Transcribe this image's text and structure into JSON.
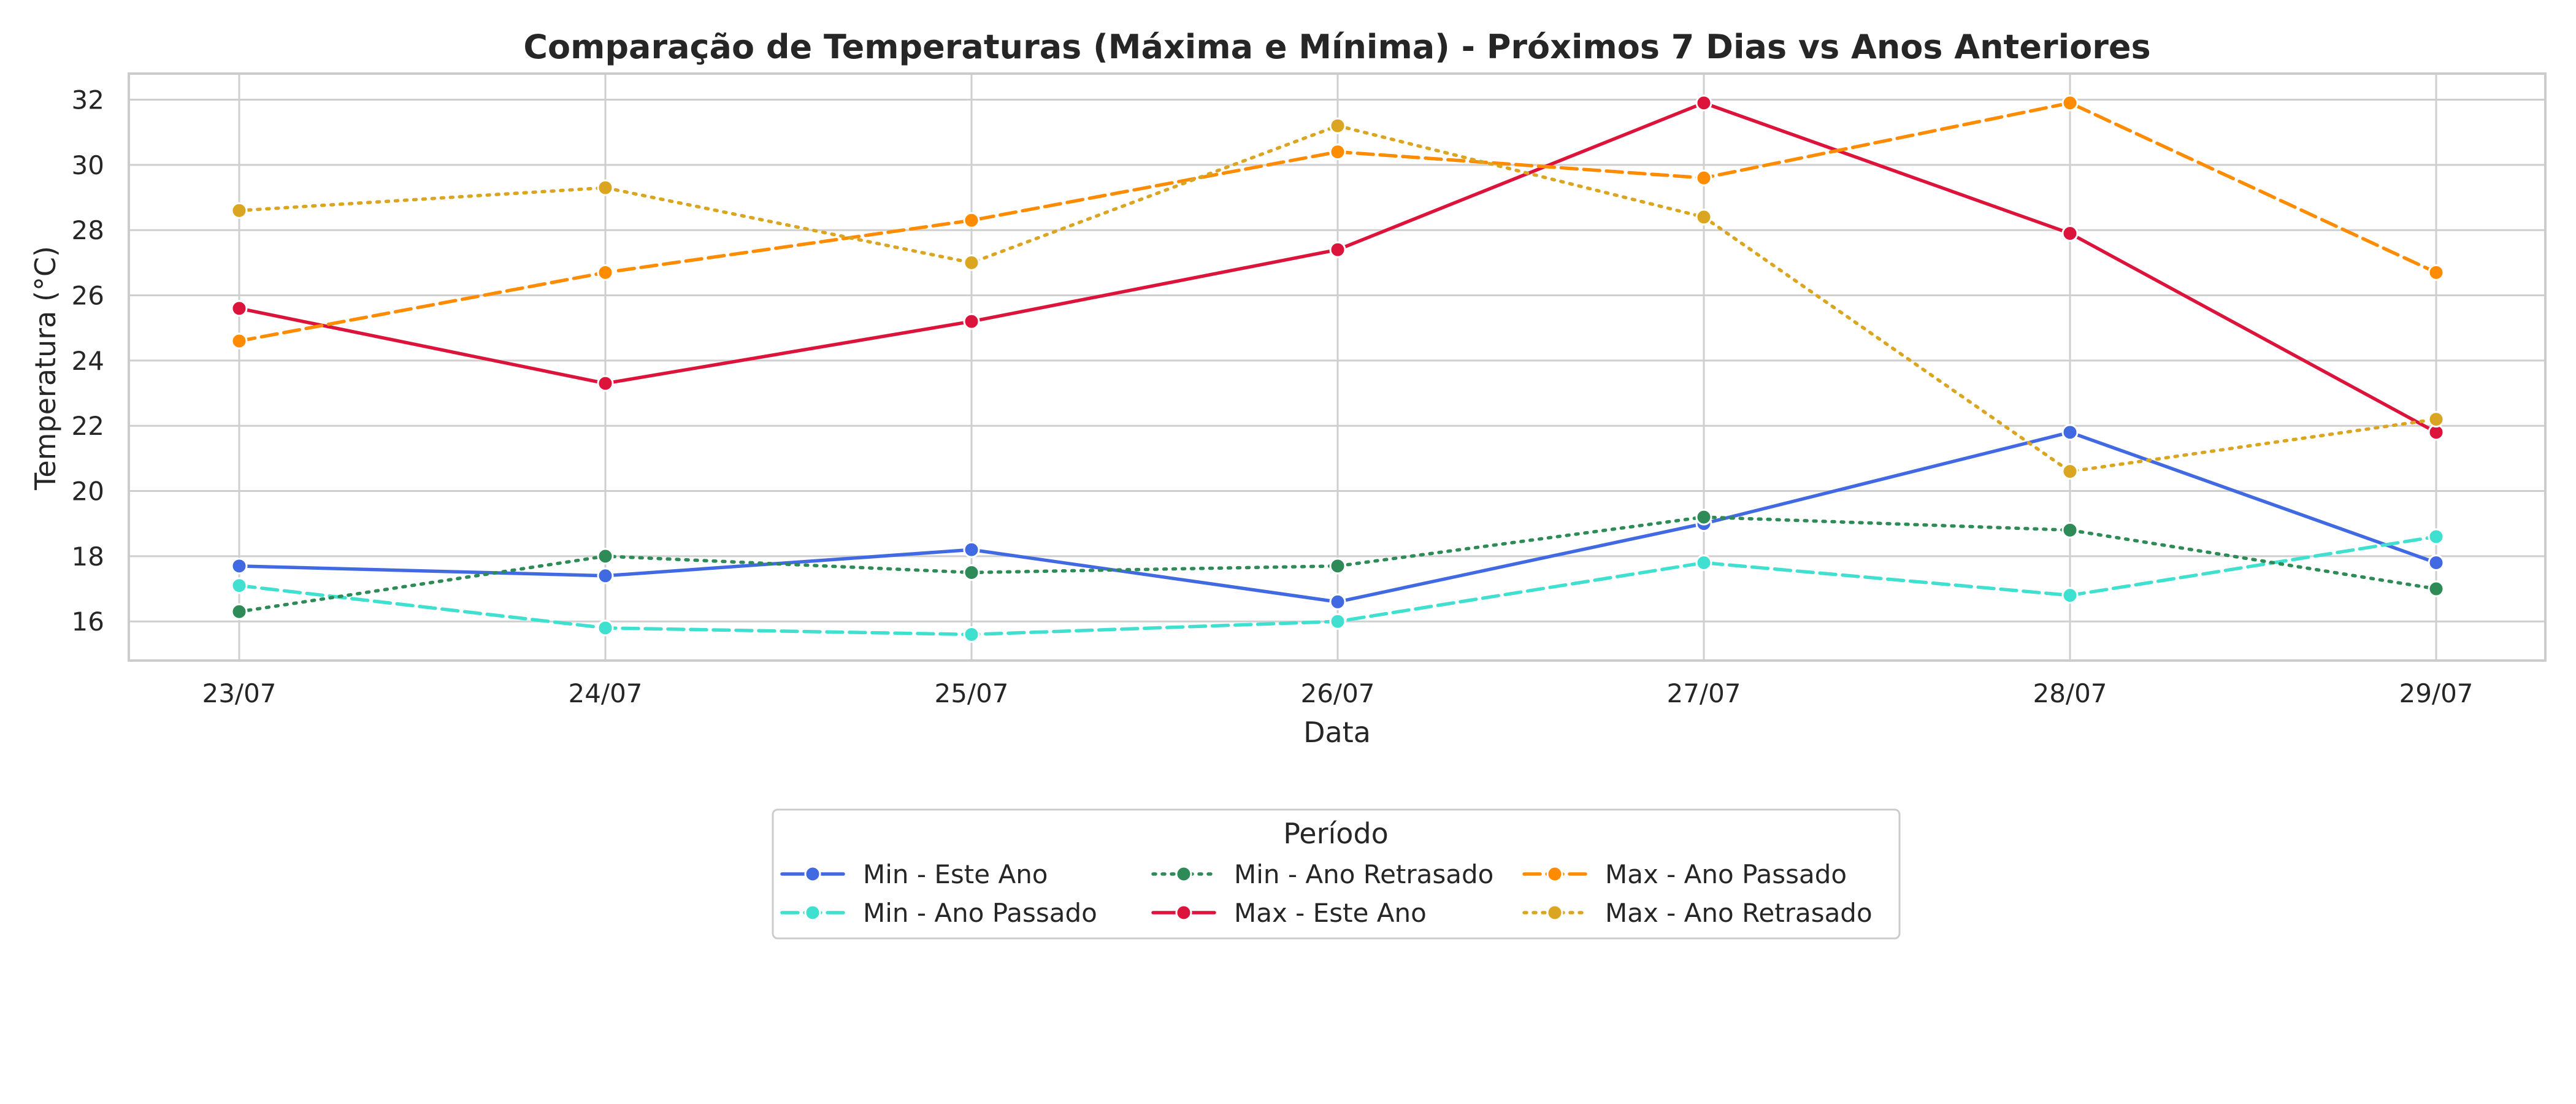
{
  "chart_data": {
    "type": "line",
    "title": "Comparação de Temperaturas (Máxima e Mínima) - Próximos 7 Dias vs Anos Anteriores",
    "xlabel": "Data",
    "ylabel": "Temperatura (°C)",
    "categories": [
      "23/07",
      "24/07",
      "25/07",
      "26/07",
      "27/07",
      "28/07",
      "29/07"
    ],
    "ylim": [
      14.8,
      32.8
    ],
    "yticks": [
      16,
      18,
      20,
      22,
      24,
      26,
      28,
      30,
      32
    ],
    "grid": true,
    "legend": {
      "title": "Período",
      "placement": "bottom-center"
    },
    "series": [
      {
        "name": "Min - Este Ano",
        "color": "#4169e1",
        "dash": "solid",
        "values": [
          17.7,
          17.4,
          18.2,
          16.6,
          19.0,
          21.8,
          17.8
        ]
      },
      {
        "name": "Min - Ano Passado",
        "color": "#40e0d0",
        "dash": "dashed",
        "values": [
          17.1,
          15.8,
          15.6,
          16.0,
          17.8,
          16.8,
          18.6
        ]
      },
      {
        "name": "Min - Ano Retrasado",
        "color": "#2e8b57",
        "dash": "dotted",
        "values": [
          16.3,
          18.0,
          17.5,
          17.7,
          19.2,
          18.8,
          17.0
        ]
      },
      {
        "name": "Max - Este Ano",
        "color": "#dc143c",
        "dash": "solid",
        "values": [
          25.6,
          23.3,
          25.2,
          27.4,
          31.9,
          27.9,
          21.8
        ]
      },
      {
        "name": "Max - Ano Passado",
        "color": "#ff8c00",
        "dash": "dashed",
        "values": [
          24.6,
          26.7,
          28.3,
          30.4,
          29.6,
          31.9,
          26.7
        ]
      },
      {
        "name": "Max - Ano Retrasado",
        "color": "#daa520",
        "dash": "dotted",
        "values": [
          28.6,
          29.3,
          27.0,
          31.2,
          28.4,
          20.6,
          22.2
        ]
      }
    ]
  }
}
